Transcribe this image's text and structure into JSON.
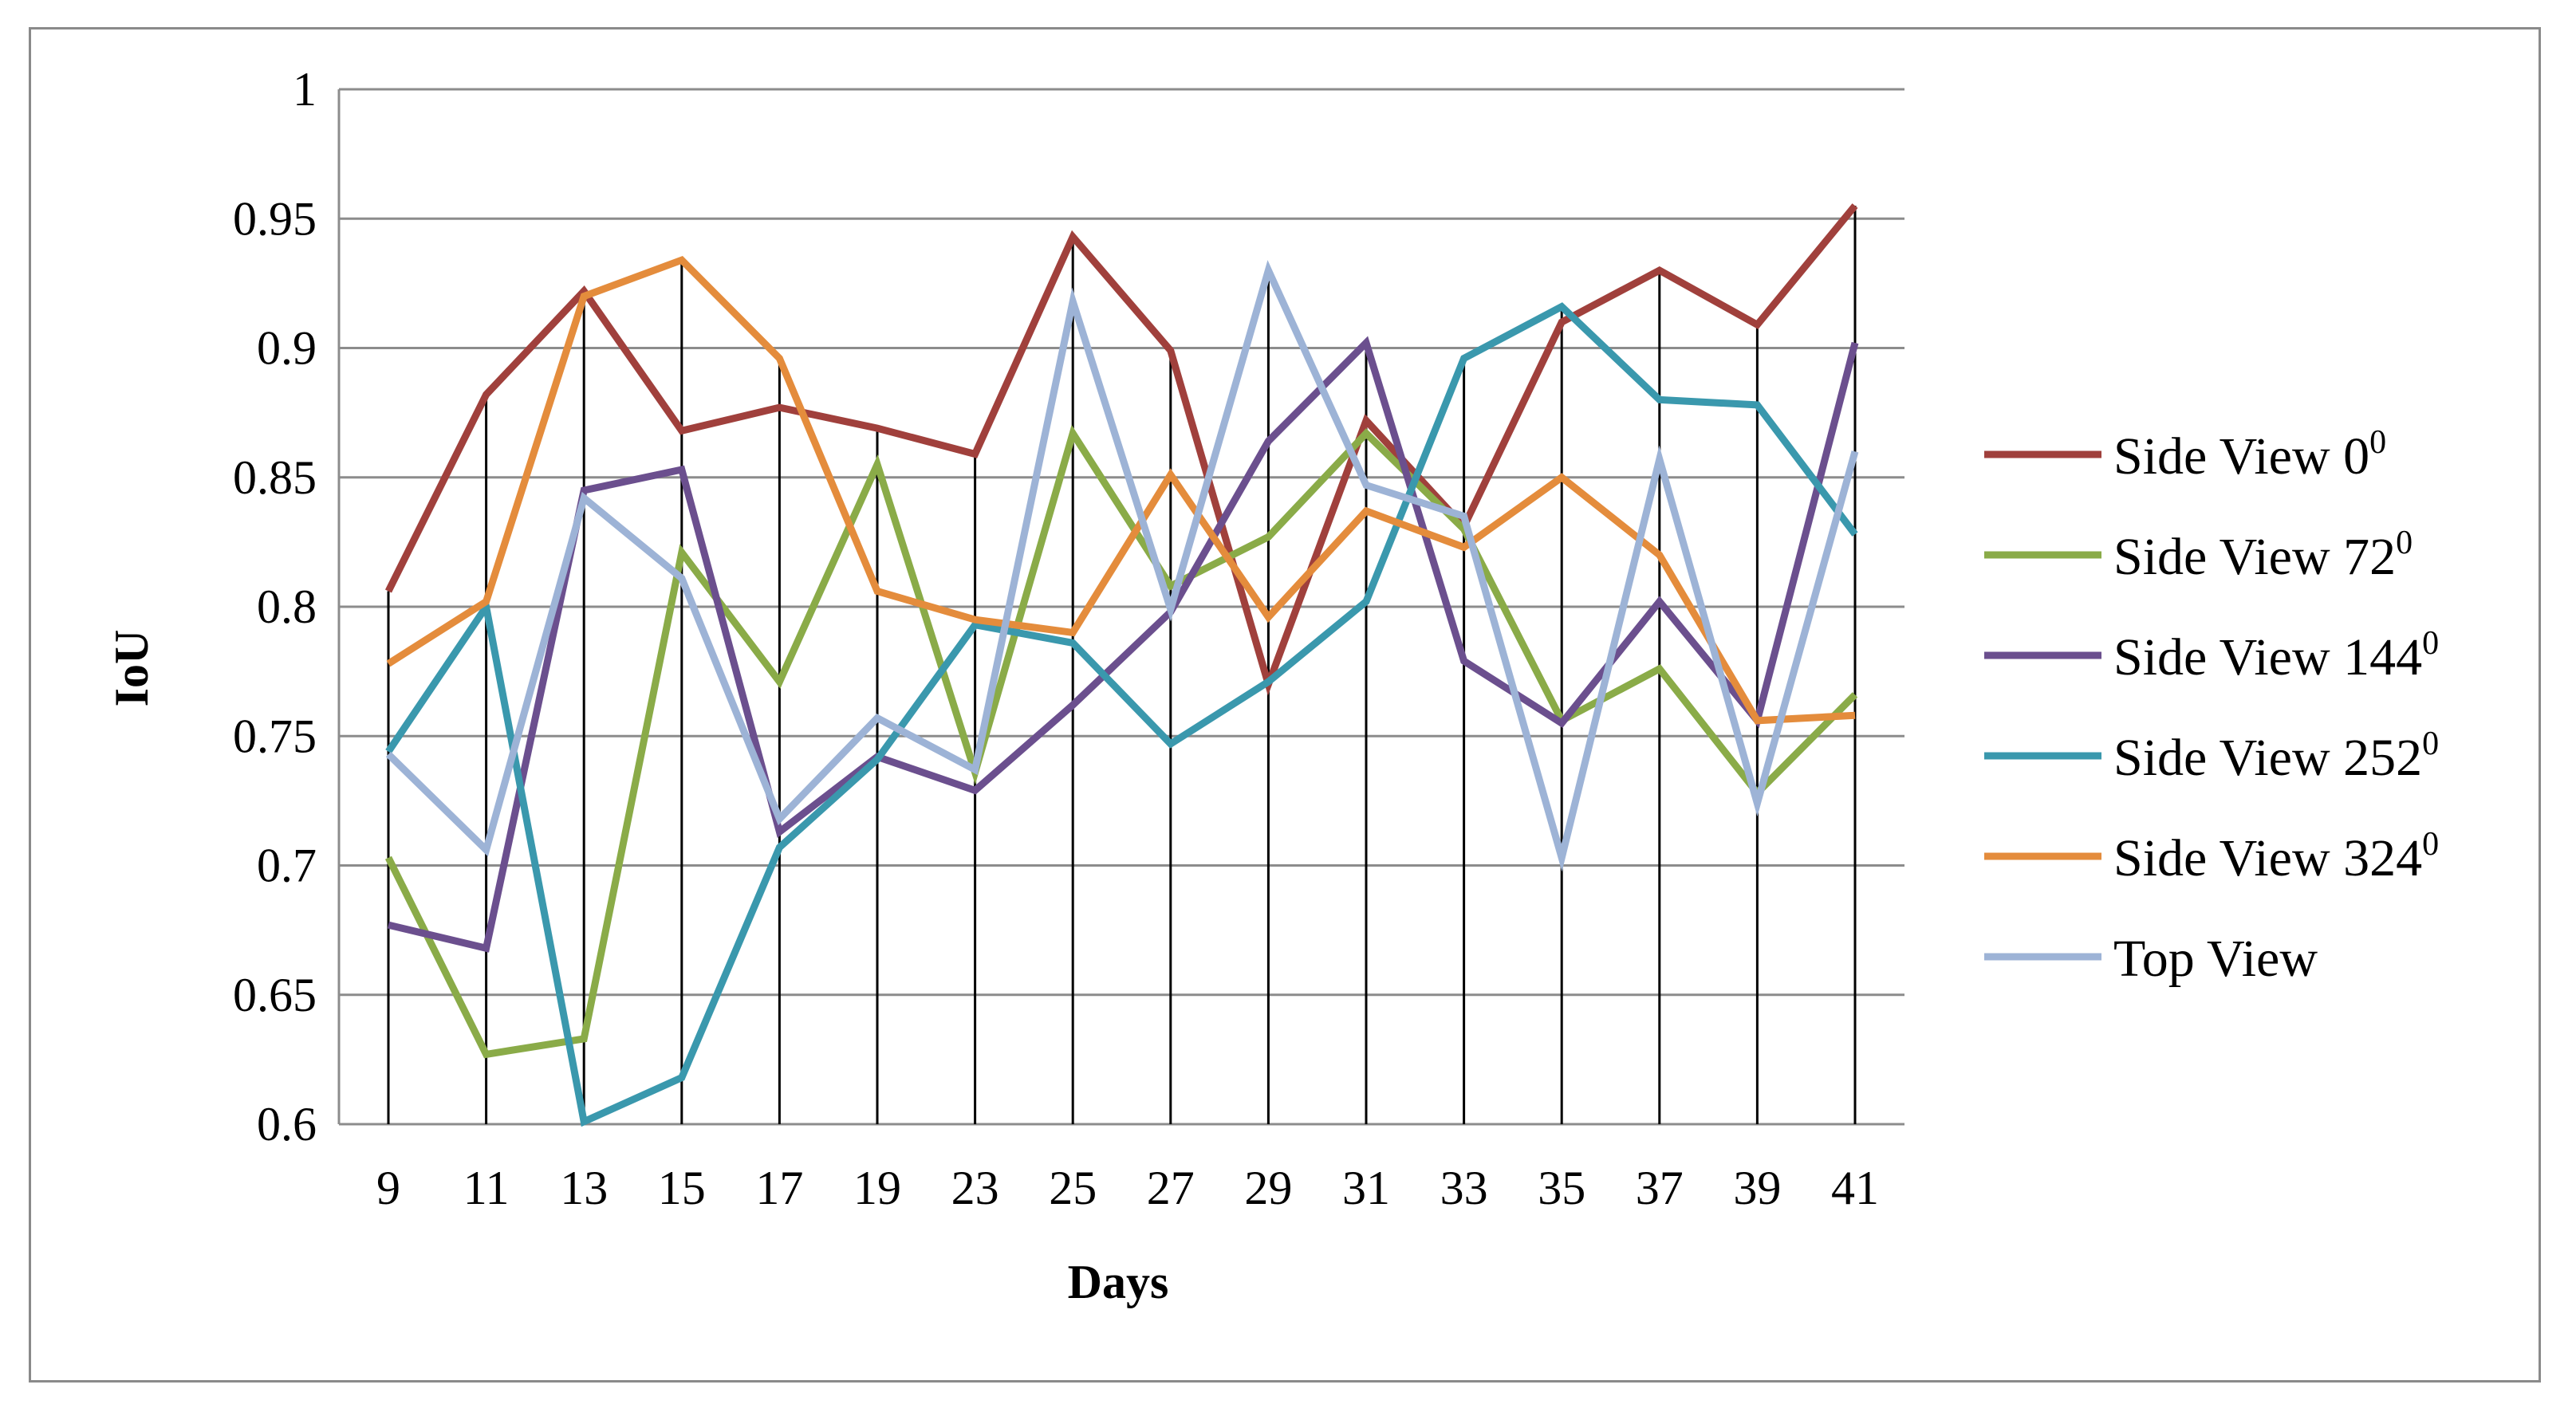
{
  "chart_data": {
    "type": "line",
    "xlabel": "Days",
    "ylabel": "IoU",
    "ylim": [
      0.6,
      1.0
    ],
    "yticks": [
      "0.6",
      "0.65",
      "0.7",
      "0.75",
      "0.8",
      "0.85",
      "0.9",
      "0.95",
      "1"
    ],
    "categories": [
      "9",
      "11",
      "13",
      "15",
      "17",
      "19",
      "23",
      "25",
      "27",
      "29",
      "31",
      "33",
      "35",
      "37",
      "39",
      "41"
    ],
    "grid": true,
    "legend_position": "right",
    "series": [
      {
        "name": "Side View 0",
        "superscript": "0",
        "color": "#a0403c",
        "values": [
          0.806,
          0.882,
          0.922,
          0.868,
          0.877,
          0.869,
          0.859,
          0.943,
          0.899,
          0.77,
          0.872,
          0.831,
          0.91,
          0.93,
          0.909,
          0.955
        ]
      },
      {
        "name": "Side View 72",
        "superscript": "0",
        "color": "#8aab48",
        "values": [
          0.703,
          0.627,
          0.633,
          0.821,
          0.771,
          0.855,
          0.736,
          0.867,
          0.808,
          0.827,
          0.867,
          0.83,
          0.756,
          0.776,
          0.728,
          0.766
        ]
      },
      {
        "name": "Side View 144",
        "superscript": "0",
        "color": "#6b4f8e",
        "values": [
          0.677,
          0.668,
          0.845,
          0.853,
          0.713,
          0.742,
          0.729,
          0.762,
          0.798,
          0.864,
          0.902,
          0.779,
          0.755,
          0.802,
          0.756,
          0.902
        ]
      },
      {
        "name": "Side View 252",
        "superscript": "0",
        "color": "#3a98ad",
        "values": [
          0.744,
          0.8,
          0.601,
          0.618,
          0.707,
          0.741,
          0.793,
          0.786,
          0.747,
          0.771,
          0.802,
          0.896,
          0.916,
          0.88,
          0.878,
          0.828
        ]
      },
      {
        "name": "Side View 324",
        "superscript": "0",
        "color": "#e48c3c",
        "values": [
          0.778,
          0.802,
          0.92,
          0.934,
          0.896,
          0.806,
          0.795,
          0.79,
          0.851,
          0.796,
          0.837,
          0.823,
          0.85,
          0.82,
          0.756,
          0.758
        ]
      },
      {
        "name": "Top View",
        "superscript": "",
        "color": "#9db3d6",
        "values": [
          0.743,
          0.706,
          0.842,
          0.811,
          0.718,
          0.757,
          0.737,
          0.918,
          0.799,
          0.93,
          0.847,
          0.835,
          0.703,
          0.857,
          0.724,
          0.86
        ]
      }
    ]
  }
}
